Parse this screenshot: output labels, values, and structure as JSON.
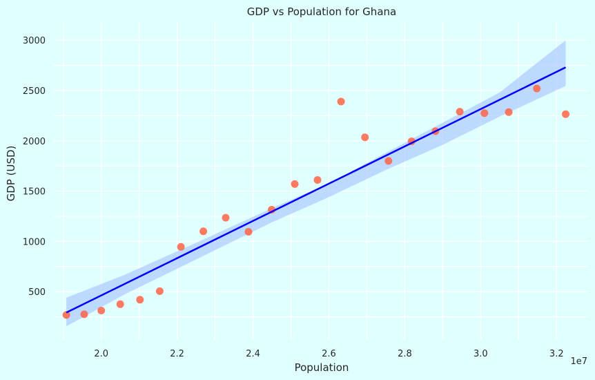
{
  "chart_data": {
    "type": "scatter",
    "title": "GDP vs Population for Ghana",
    "xlabel": "Population",
    "ylabel": "GDP (USD)",
    "x_offset_label": "1e7",
    "xlim": [
      1.875,
      3.285
    ],
    "ylim": [
      20,
      3180
    ],
    "x_ticks": [
      2.0,
      2.2,
      2.4,
      2.6,
      2.8,
      3.0,
      3.2
    ],
    "x_tick_labels": [
      "2.0",
      "2.2",
      "2.4",
      "2.6",
      "2.8",
      "3.0",
      "3.2"
    ],
    "y_ticks": [
      500,
      1000,
      1500,
      2000,
      2500,
      3000
    ],
    "y_tick_labels": [
      "500",
      "1000",
      "1500",
      "2000",
      "2500",
      "3000"
    ],
    "grid": true,
    "colors": {
      "background": "#e0ffff",
      "points": "#ff6347",
      "regression_line": "#0000ff",
      "confidence_band": "#9fb9ff"
    },
    "points": [
      {
        "x": 1.908,
        "y": 268
      },
      {
        "x": 1.955,
        "y": 275
      },
      {
        "x": 2.0,
        "y": 312
      },
      {
        "x": 2.05,
        "y": 375
      },
      {
        "x": 2.102,
        "y": 420
      },
      {
        "x": 2.154,
        "y": 505
      },
      {
        "x": 2.21,
        "y": 945
      },
      {
        "x": 2.269,
        "y": 1100
      },
      {
        "x": 2.328,
        "y": 1235
      },
      {
        "x": 2.388,
        "y": 1095
      },
      {
        "x": 2.449,
        "y": 1315
      },
      {
        "x": 2.51,
        "y": 1570
      },
      {
        "x": 2.57,
        "y": 1610
      },
      {
        "x": 2.632,
        "y": 2390
      },
      {
        "x": 2.695,
        "y": 2035
      },
      {
        "x": 2.757,
        "y": 1800
      },
      {
        "x": 2.818,
        "y": 1995
      },
      {
        "x": 2.881,
        "y": 2095
      },
      {
        "x": 2.945,
        "y": 2290
      },
      {
        "x": 3.01,
        "y": 2275
      },
      {
        "x": 3.074,
        "y": 2285
      },
      {
        "x": 3.148,
        "y": 2520
      },
      {
        "x": 3.224,
        "y": 2265
      }
    ],
    "regression": {
      "x_start": 1.908,
      "y_start": 292,
      "x_end": 3.224,
      "y_end": 2730
    },
    "confidence_band": {
      "x": [
        1.908,
        2.06,
        2.25,
        2.45,
        2.6,
        2.75,
        2.9,
        3.05,
        3.224
      ],
      "upper": [
        440,
        665,
        985,
        1330,
        1575,
        1880,
        2180,
        2480,
        3000
      ],
      "lower": [
        155,
        470,
        820,
        1190,
        1440,
        1710,
        1960,
        2240,
        2545
      ]
    }
  }
}
